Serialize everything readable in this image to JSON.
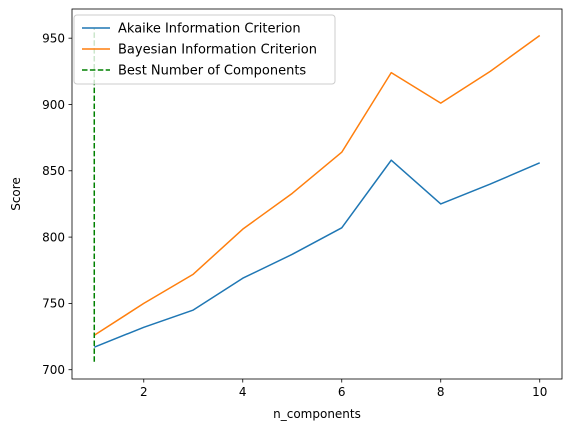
{
  "chart_data": {
    "type": "line",
    "xlabel": "n_components",
    "ylabel": "Score",
    "xlim": [
      0.55,
      10.45
    ],
    "ylim": [
      693,
      972
    ],
    "xticks": [
      2,
      4,
      6,
      8,
      10
    ],
    "yticks": [
      700,
      750,
      800,
      850,
      900,
      950
    ],
    "grid": false,
    "legend_position": "upper-left",
    "x": [
      1,
      2,
      3,
      4,
      5,
      6,
      7,
      8,
      9,
      10
    ],
    "series": [
      {
        "name": "Akaike Information Criterion",
        "color": "#1f77b4",
        "style": "solid",
        "values": [
          717,
          732,
          745,
          769,
          787,
          807,
          858,
          825,
          840,
          856
        ]
      },
      {
        "name": "Bayesian Information Criterion",
        "color": "#ff7f0e",
        "style": "solid",
        "values": [
          726,
          750,
          772,
          806,
          833,
          864,
          924,
          901,
          925,
          952
        ]
      }
    ],
    "vline": {
      "name": "Best Number of Components",
      "color": "#008000",
      "style": "dashed",
      "x": 1,
      "y_from": 706,
      "y_to": 958
    }
  }
}
